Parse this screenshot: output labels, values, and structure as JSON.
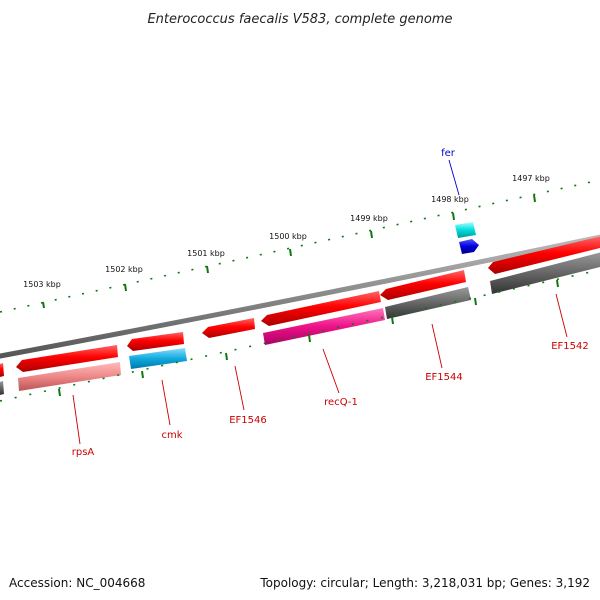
{
  "title": "Enterococcus faecalis V583, complete genome",
  "footer": {
    "accession": "Accession: NC_004668",
    "summary": "Topology: circular; Length: 3,218,031 bp; Genes: 3,192"
  },
  "ticks": [
    "1503 kbp",
    "1502 kbp",
    "1501 kbp",
    "1500 kbp",
    "1499 kbp",
    "1498 kbp",
    "1497 kbp"
  ],
  "genes": [
    {
      "label": "rpsA",
      "color": "#cc0000"
    },
    {
      "label": "cmk",
      "color": "#cc0000"
    },
    {
      "label": "EF1546",
      "color": "#cc0000"
    },
    {
      "label": "recQ-1",
      "color": "#cc0000"
    },
    {
      "label": "EF1544",
      "color": "#cc0000"
    },
    {
      "label": "EF1542",
      "color": "#cc0000"
    },
    {
      "label": "fer",
      "color": "#0000cc"
    }
  ],
  "colors": {
    "cds": "#ee0000",
    "rna": "#ee8888",
    "cog_blue": "#00aadd",
    "cog_pink": "#ee1188",
    "cog_gray": "#666666",
    "cog_cyan": "#00dddd",
    "cog_darkblue": "#0000dd",
    "backbone": "#888888",
    "tick": "#117711"
  }
}
